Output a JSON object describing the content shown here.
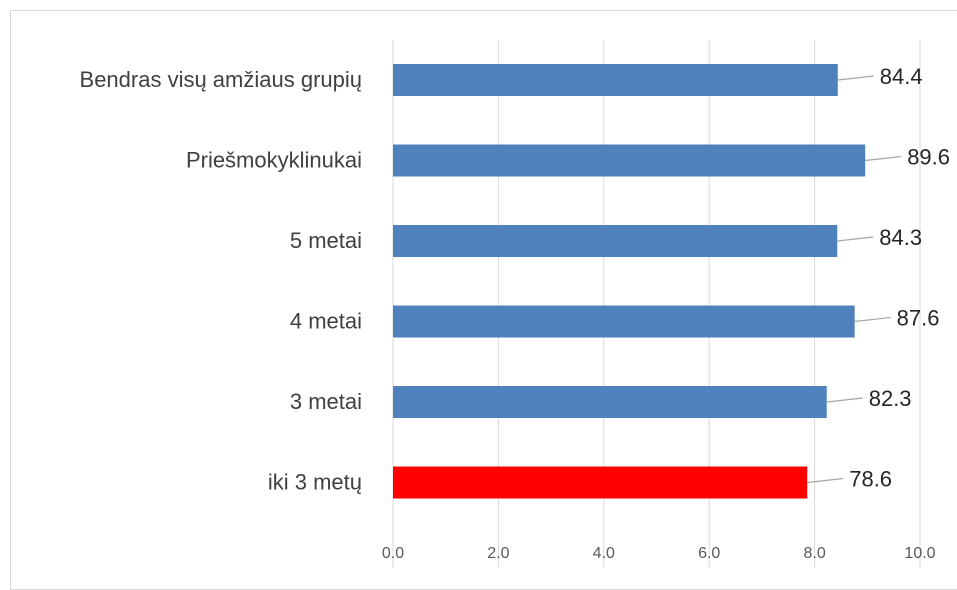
{
  "chart_data": {
    "type": "bar",
    "orientation": "horizontal",
    "categories": [
      "Bendras visų amžiaus grupių",
      "Priešmokyklinukai",
      "5 metai",
      "4 metai",
      "3 metai",
      "iki 3 metų"
    ],
    "values": [
      8.44,
      8.96,
      8.43,
      8.76,
      8.23,
      7.86
    ],
    "data_labels": [
      "84.4",
      "89.6",
      "84.3",
      "87.6",
      "82.3",
      "78.6"
    ],
    "bar_colors": [
      "#4f81bd",
      "#4f81bd",
      "#4f81bd",
      "#4f81bd",
      "#4f81bd",
      "#ff0000"
    ],
    "xlim": [
      0,
      10
    ],
    "x_ticks": [
      "0.0",
      "2.0",
      "4.0",
      "6.0",
      "8.0",
      "10.0"
    ],
    "grid": true,
    "legend": "none",
    "title": "",
    "xlabel": "",
    "ylabel": ""
  }
}
